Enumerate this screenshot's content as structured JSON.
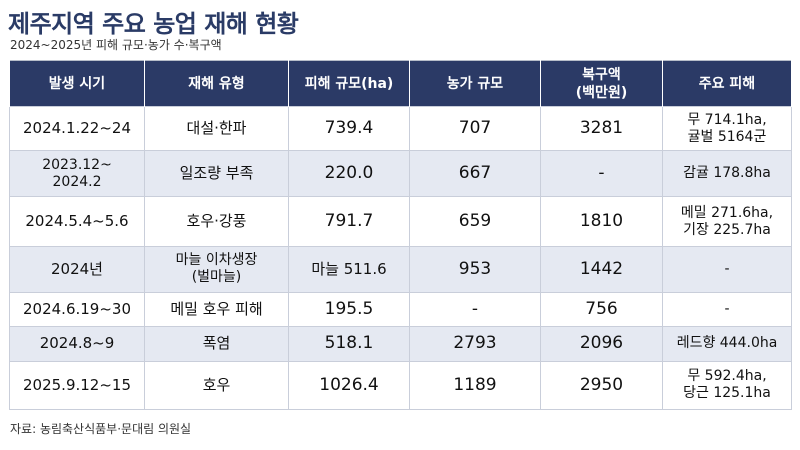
{
  "title": "제주지역 주요 농업 재해 현황",
  "subtitle": "2024~2025년 피해 규모·농가 수·복구액",
  "table": {
    "headers": [
      "발생 시기",
      "재해 유형",
      "피해 규모(ha)",
      "농가 규모",
      "복구액\n(백만원)",
      "주요 피해"
    ],
    "rows": [
      [
        "2024.1.22~24",
        "대설·한파",
        "739.4",
        "707",
        "3281",
        "무 714.1ha,\n귤벌 5164군"
      ],
      [
        "2023.12~\n2024.2",
        "일조량 부족",
        "220.0",
        "667",
        "-",
        "감귤 178.8ha"
      ],
      [
        "2024.5.4~5.6",
        "호우·강풍",
        "791.7",
        "659",
        "1810",
        "메밀 271.6ha,\n기장 225.7ha"
      ],
      [
        "2024년",
        "마늘 이차생장\n(벌마늘)",
        "마늘 511.6",
        "953",
        "1442",
        "-"
      ],
      [
        "2024.6.19~30",
        "메밀 호우 피해",
        "195.5",
        "-",
        "756",
        "-"
      ],
      [
        "2024.8~9",
        "폭염",
        "518.1",
        "2793",
        "2096",
        "레드향 444.0ha"
      ],
      [
        "2025.9.12~15",
        "호우",
        "1026.4",
        "1189",
        "2950",
        "무 592.4ha,\n당근 125.1ha"
      ]
    ]
  },
  "source": "자료: 농림축산식품부·문대림 의원실"
}
